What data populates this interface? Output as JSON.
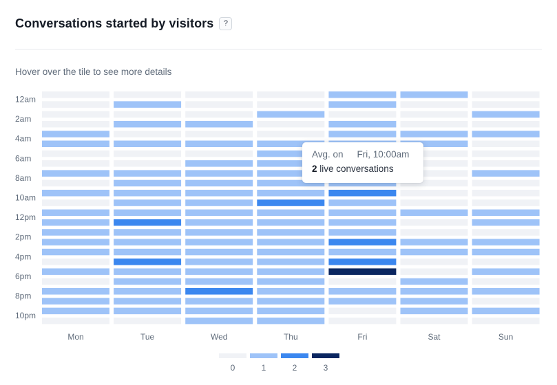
{
  "header": {
    "title": "Conversations started by visitors",
    "help_label": "?"
  },
  "hint": "Hover over the tile to see more details",
  "tooltip": {
    "avg_label": "Avg. on",
    "time_label": "Fri, 10:00am",
    "count": "2",
    "suffix": " live conversations"
  },
  "colors": [
    "#f0f2f6",
    "#9ec3f8",
    "#3b87ef",
    "#0a2660"
  ],
  "legend": [
    {
      "label": "0",
      "color": "#f0f2f6"
    },
    {
      "label": "1",
      "color": "#9ec3f8"
    },
    {
      "label": "2",
      "color": "#3b87ef"
    },
    {
      "label": "3",
      "color": "#0a2660"
    }
  ],
  "chart_data": {
    "type": "heatmap",
    "title": "Conversations started by visitors",
    "x_labels": [
      "Mon",
      "Tue",
      "Wed",
      "Thu",
      "Fri",
      "Sat",
      "Sun"
    ],
    "y_labels": [
      "12am",
      "2am",
      "4am",
      "6am",
      "8am",
      "10am",
      "12pm",
      "2pm",
      "4pm",
      "6pm",
      "8pm",
      "10pm"
    ],
    "hours": [
      "12am",
      "1am",
      "2am",
      "3am",
      "4am",
      "5am",
      "6am",
      "7am",
      "8am",
      "9am",
      "10am",
      "11am",
      "12pm",
      "1pm",
      "2pm",
      "3pm",
      "4pm",
      "5pm",
      "6pm",
      "7pm",
      "8pm",
      "9pm",
      "10pm",
      "11pm"
    ],
    "scale": [
      0,
      1,
      2,
      3
    ],
    "values": [
      [
        0,
        0,
        0,
        0,
        1,
        1,
        0,
        0,
        0,
        0,
        0,
        0,
        0,
        0,
        0,
        1,
        0,
        0,
        1,
        0,
        0,
        0,
        1,
        1
      ],
      [
        0,
        0,
        0,
        1,
        0,
        1,
        0,
        0,
        0,
        0,
        0,
        0,
        0,
        0,
        1,
        1,
        1,
        0,
        0,
        0,
        1,
        1,
        1,
        1
      ],
      [
        0,
        0,
        0,
        1,
        0,
        1,
        0,
        1,
        1,
        1,
        0,
        0,
        0,
        0,
        1,
        1,
        1,
        1,
        1,
        1,
        1,
        1,
        1,
        1
      ],
      [
        0,
        0,
        0,
        0,
        0,
        0,
        0,
        0,
        0,
        1,
        0,
        0,
        0,
        0,
        1,
        1,
        0,
        0,
        0,
        0,
        0,
        0,
        0,
        0
      ],
      [
        1,
        1,
        0,
        0,
        0,
        0,
        1,
        0,
        1,
        1,
        1,
        0,
        0,
        0,
        0,
        0,
        0,
        1,
        1,
        0,
        0,
        0,
        0,
        0
      ],
      [
        1,
        0,
        0,
        0,
        1,
        0,
        0,
        0,
        0,
        0,
        0,
        0,
        0,
        0,
        0,
        0,
        0,
        0,
        0,
        0,
        0,
        0,
        0,
        0
      ],
      [
        0,
        0,
        1,
        0,
        1,
        0,
        0,
        0,
        1,
        0,
        0,
        0,
        0,
        0,
        0,
        0,
        0,
        0,
        0,
        0,
        0,
        0,
        0,
        0
      ]
    ],
    "overrides": [
      [
        0,
        8,
        1
      ],
      [
        0,
        10,
        1
      ],
      [
        0,
        12,
        1
      ],
      [
        0,
        13,
        1
      ],
      [
        0,
        14,
        1
      ],
      [
        0,
        15,
        1
      ],
      [
        0,
        16,
        1
      ],
      [
        0,
        18,
        1
      ],
      [
        0,
        20,
        1
      ],
      [
        0,
        21,
        1
      ],
      [
        0,
        22,
        1
      ],
      [
        0,
        23,
        0
      ],
      [
        1,
        9,
        1
      ],
      [
        1,
        10,
        1
      ],
      [
        1,
        11,
        1
      ],
      [
        1,
        12,
        1
      ],
      [
        1,
        13,
        2
      ],
      [
        1,
        14,
        1
      ],
      [
        1,
        15,
        1
      ],
      [
        1,
        17,
        2
      ],
      [
        1,
        18,
        1
      ],
      [
        1,
        19,
        1
      ],
      [
        1,
        20,
        1
      ],
      [
        1,
        21,
        1
      ],
      [
        1,
        22,
        1
      ],
      [
        1,
        23,
        0
      ],
      [
        1,
        1,
        1
      ],
      [
        1,
        8,
        1
      ],
      [
        2,
        3,
        1
      ],
      [
        2,
        7,
        1
      ],
      [
        2,
        8,
        1
      ],
      [
        2,
        9,
        1
      ],
      [
        2,
        10,
        1
      ],
      [
        2,
        11,
        1
      ],
      [
        2,
        12,
        1
      ],
      [
        2,
        13,
        1
      ],
      [
        2,
        14,
        1
      ],
      [
        2,
        15,
        1
      ],
      [
        2,
        16,
        1
      ],
      [
        2,
        17,
        1
      ],
      [
        2,
        18,
        1
      ],
      [
        2,
        19,
        1
      ],
      [
        2,
        20,
        2
      ],
      [
        2,
        21,
        1
      ],
      [
        2,
        22,
        1
      ],
      [
        2,
        23,
        1
      ],
      [
        3,
        2,
        1
      ],
      [
        3,
        5,
        1
      ],
      [
        3,
        6,
        1
      ],
      [
        3,
        7,
        1
      ],
      [
        3,
        8,
        1
      ],
      [
        3,
        9,
        1
      ],
      [
        3,
        10,
        1
      ],
      [
        3,
        11,
        2
      ],
      [
        3,
        12,
        1
      ],
      [
        3,
        13,
        1
      ],
      [
        3,
        14,
        1
      ],
      [
        3,
        15,
        1
      ],
      [
        3,
        16,
        1
      ],
      [
        3,
        17,
        1
      ],
      [
        3,
        18,
        1
      ],
      [
        3,
        19,
        1
      ],
      [
        3,
        20,
        1
      ],
      [
        3,
        21,
        1
      ],
      [
        3,
        22,
        1
      ],
      [
        3,
        23,
        1
      ],
      [
        4,
        0,
        1
      ],
      [
        4,
        1,
        1
      ],
      [
        4,
        3,
        1
      ],
      [
        4,
        4,
        1
      ],
      [
        4,
        5,
        1
      ],
      [
        4,
        6,
        1
      ],
      [
        4,
        7,
        1
      ],
      [
        4,
        8,
        1
      ],
      [
        4,
        9,
        1
      ],
      [
        4,
        10,
        2
      ],
      [
        4,
        11,
        1
      ],
      [
        4,
        12,
        1
      ],
      [
        4,
        13,
        1
      ],
      [
        4,
        14,
        1
      ],
      [
        4,
        15,
        2
      ],
      [
        4,
        16,
        1
      ],
      [
        4,
        17,
        2
      ],
      [
        4,
        18,
        3
      ],
      [
        4,
        19,
        0
      ],
      [
        4,
        20,
        1
      ],
      [
        4,
        21,
        1
      ],
      [
        4,
        22,
        0
      ],
      [
        4,
        23,
        0
      ],
      [
        5,
        0,
        1
      ],
      [
        5,
        5,
        1
      ],
      [
        5,
        12,
        1
      ],
      [
        5,
        15,
        1
      ],
      [
        5,
        16,
        1
      ],
      [
        5,
        19,
        1
      ],
      [
        5,
        20,
        1
      ],
      [
        5,
        21,
        1
      ],
      [
        5,
        22,
        1
      ],
      [
        5,
        23,
        0
      ],
      [
        6,
        2,
        1
      ],
      [
        6,
        4,
        1
      ],
      [
        6,
        8,
        1
      ],
      [
        6,
        12,
        1
      ],
      [
        6,
        13,
        1
      ],
      [
        6,
        15,
        1
      ],
      [
        6,
        16,
        1
      ],
      [
        6,
        18,
        1
      ],
      [
        6,
        20,
        1
      ],
      [
        6,
        22,
        1
      ],
      [
        6,
        23,
        0
      ]
    ]
  }
}
